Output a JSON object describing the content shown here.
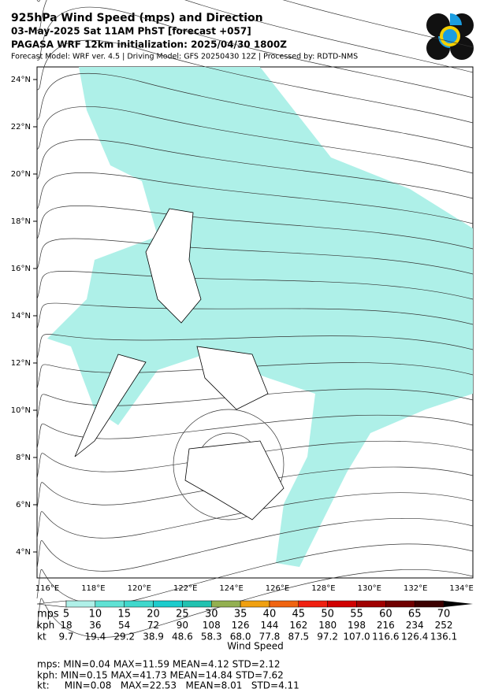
{
  "header": {
    "title": "925hPa Wind Speed (mps) and Direction",
    "line2": "03-May-2025 Sat 11AM PhST [forecast +057]",
    "line3": "PAGASA WRF 12km initialization: 2025/04/30 1800Z",
    "line4": "Forecast Model: WRF ver. 4.5 | Driving Model: GFS 20250430 12Z | Processed by: RDTD-NMS"
  },
  "map": {
    "lat_labels": [
      "24°N",
      "22°N",
      "20°N",
      "18°N",
      "16°N",
      "14°N",
      "12°N",
      "10°N",
      "8°N",
      "6°N",
      "4°N"
    ],
    "lon_labels": [
      "116°E",
      "118°E",
      "120°E",
      "122°E",
      "124°E",
      "126°E",
      "128°E",
      "130°E",
      "132°E",
      "134°E"
    ]
  },
  "colorbar": {
    "title": "Wind Speed",
    "colors": [
      "#aff0e8",
      "#60e2d4",
      "#3fd8cc",
      "#1ccccc",
      "#22c2b0",
      "#93b050",
      "#f0a010",
      "#f06410",
      "#f02010",
      "#d00000",
      "#a00000",
      "#700000",
      "#3c0000"
    ],
    "rows": [
      {
        "unit": "mps",
        "labels": [
          "5",
          "10",
          "15",
          "20",
          "25",
          "30",
          "35",
          "40",
          "45",
          "50",
          "55",
          "60",
          "65",
          "70"
        ]
      },
      {
        "unit": "kph",
        "labels": [
          "18",
          "36",
          "54",
          "72",
          "90",
          "108",
          "126",
          "144",
          "162",
          "180",
          "198",
          "216",
          "234",
          "252"
        ]
      },
      {
        "unit": "kt",
        "labels": [
          "9.7",
          "19.4",
          "29.2",
          "38.9",
          "48.6",
          "58.3",
          "68.0",
          "77.8",
          "87.5",
          "97.2",
          "107.0",
          "116.6",
          "126.4",
          "136.1"
        ]
      }
    ]
  },
  "stats": [
    "mps: MIN=0.04   MAX=11.59   MEAN=4.12   STD=2.12",
    "kph:  MIN=0.15   MAX=41.73   MEAN=14.84   STD=7.62",
    "kt:     MIN=0.08   MAX=22.53   MEAN=8.01   STD=4.11"
  ]
}
